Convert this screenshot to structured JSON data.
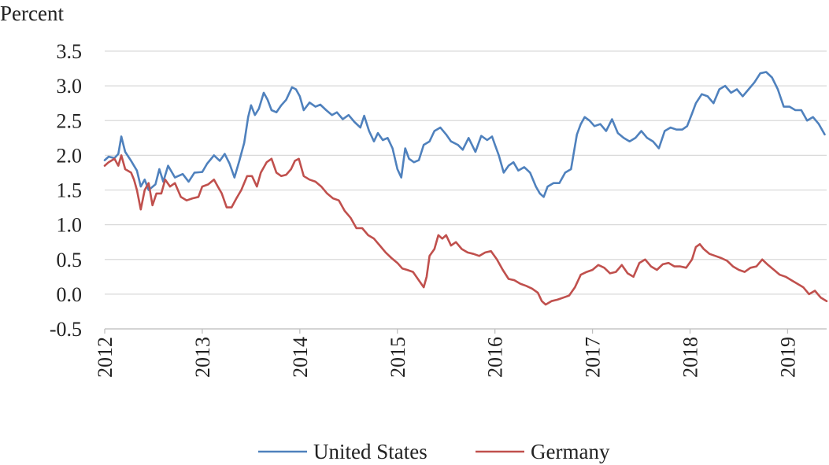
{
  "chart_data": {
    "type": "line",
    "ylabel": "Percent",
    "ylim": [
      -0.5,
      3.5
    ],
    "y_ticks": [
      "3.5",
      "3.0",
      "2.5",
      "2.0",
      "1.5",
      "1.0",
      "0.5",
      "0.0",
      "-0.5"
    ],
    "x_ticks": [
      "2012",
      "2013",
      "2014",
      "2015",
      "2016",
      "2017",
      "2018",
      "2019"
    ],
    "xlim": [
      2012.0,
      2019.4
    ],
    "grid": "horizontal",
    "legend_position": "bottom",
    "series": [
      {
        "name": "United States",
        "color": "#4f81bd",
        "points": [
          [
            2012.0,
            1.93
          ],
          [
            2012.04,
            1.98
          ],
          [
            2012.1,
            1.96
          ],
          [
            2012.14,
            2.02
          ],
          [
            2012.17,
            2.27
          ],
          [
            2012.21,
            2.05
          ],
          [
            2012.27,
            1.92
          ],
          [
            2012.33,
            1.78
          ],
          [
            2012.37,
            1.55
          ],
          [
            2012.41,
            1.65
          ],
          [
            2012.45,
            1.5
          ],
          [
            2012.52,
            1.58
          ],
          [
            2012.56,
            1.8
          ],
          [
            2012.6,
            1.62
          ],
          [
            2012.65,
            1.85
          ],
          [
            2012.72,
            1.68
          ],
          [
            2012.8,
            1.73
          ],
          [
            2012.86,
            1.62
          ],
          [
            2012.92,
            1.75
          ],
          [
            2013.0,
            1.76
          ],
          [
            2013.05,
            1.88
          ],
          [
            2013.12,
            2.0
          ],
          [
            2013.18,
            1.92
          ],
          [
            2013.23,
            2.02
          ],
          [
            2013.28,
            1.88
          ],
          [
            2013.33,
            1.68
          ],
          [
            2013.38,
            1.92
          ],
          [
            2013.43,
            2.18
          ],
          [
            2013.47,
            2.55
          ],
          [
            2013.5,
            2.72
          ],
          [
            2013.54,
            2.58
          ],
          [
            2013.58,
            2.67
          ],
          [
            2013.63,
            2.9
          ],
          [
            2013.67,
            2.8
          ],
          [
            2013.71,
            2.65
          ],
          [
            2013.76,
            2.62
          ],
          [
            2013.81,
            2.72
          ],
          [
            2013.86,
            2.8
          ],
          [
            2013.92,
            2.98
          ],
          [
            2013.96,
            2.95
          ],
          [
            2014.0,
            2.85
          ],
          [
            2014.04,
            2.65
          ],
          [
            2014.1,
            2.76
          ],
          [
            2014.16,
            2.7
          ],
          [
            2014.21,
            2.73
          ],
          [
            2014.27,
            2.65
          ],
          [
            2014.33,
            2.58
          ],
          [
            2014.38,
            2.62
          ],
          [
            2014.44,
            2.52
          ],
          [
            2014.5,
            2.58
          ],
          [
            2014.56,
            2.48
          ],
          [
            2014.62,
            2.4
          ],
          [
            2014.66,
            2.57
          ],
          [
            2014.71,
            2.35
          ],
          [
            2014.76,
            2.2
          ],
          [
            2014.8,
            2.32
          ],
          [
            2014.85,
            2.22
          ],
          [
            2014.9,
            2.25
          ],
          [
            2014.95,
            2.1
          ],
          [
            2015.0,
            1.8
          ],
          [
            2015.04,
            1.68
          ],
          [
            2015.08,
            2.1
          ],
          [
            2015.12,
            1.95
          ],
          [
            2015.17,
            1.9
          ],
          [
            2015.22,
            1.93
          ],
          [
            2015.27,
            2.15
          ],
          [
            2015.33,
            2.2
          ],
          [
            2015.38,
            2.35
          ],
          [
            2015.44,
            2.4
          ],
          [
            2015.5,
            2.3
          ],
          [
            2015.55,
            2.2
          ],
          [
            2015.62,
            2.15
          ],
          [
            2015.67,
            2.08
          ],
          [
            2015.73,
            2.25
          ],
          [
            2015.8,
            2.05
          ],
          [
            2015.86,
            2.28
          ],
          [
            2015.92,
            2.22
          ],
          [
            2015.97,
            2.27
          ],
          [
            2016.0,
            2.15
          ],
          [
            2016.04,
            2.0
          ],
          [
            2016.09,
            1.75
          ],
          [
            2016.14,
            1.85
          ],
          [
            2016.19,
            1.9
          ],
          [
            2016.24,
            1.78
          ],
          [
            2016.3,
            1.83
          ],
          [
            2016.36,
            1.75
          ],
          [
            2016.42,
            1.55
          ],
          [
            2016.46,
            1.45
          ],
          [
            2016.5,
            1.4
          ],
          [
            2016.54,
            1.55
          ],
          [
            2016.6,
            1.6
          ],
          [
            2016.66,
            1.6
          ],
          [
            2016.72,
            1.75
          ],
          [
            2016.78,
            1.8
          ],
          [
            2016.84,
            2.3
          ],
          [
            2016.88,
            2.45
          ],
          [
            2016.92,
            2.55
          ],
          [
            2016.97,
            2.5
          ],
          [
            2017.02,
            2.42
          ],
          [
            2017.08,
            2.45
          ],
          [
            2017.14,
            2.35
          ],
          [
            2017.2,
            2.52
          ],
          [
            2017.26,
            2.32
          ],
          [
            2017.32,
            2.25
          ],
          [
            2017.38,
            2.2
          ],
          [
            2017.44,
            2.25
          ],
          [
            2017.5,
            2.35
          ],
          [
            2017.56,
            2.25
          ],
          [
            2017.62,
            2.2
          ],
          [
            2017.68,
            2.1
          ],
          [
            2017.74,
            2.35
          ],
          [
            2017.8,
            2.4
          ],
          [
            2017.86,
            2.37
          ],
          [
            2017.92,
            2.37
          ],
          [
            2017.97,
            2.42
          ],
          [
            2018.02,
            2.6
          ],
          [
            2018.06,
            2.75
          ],
          [
            2018.12,
            2.88
          ],
          [
            2018.18,
            2.85
          ],
          [
            2018.24,
            2.75
          ],
          [
            2018.3,
            2.95
          ],
          [
            2018.36,
            3.0
          ],
          [
            2018.42,
            2.9
          ],
          [
            2018.48,
            2.95
          ],
          [
            2018.54,
            2.85
          ],
          [
            2018.6,
            2.95
          ],
          [
            2018.66,
            3.05
          ],
          [
            2018.72,
            3.18
          ],
          [
            2018.78,
            3.2
          ],
          [
            2018.84,
            3.12
          ],
          [
            2018.9,
            2.95
          ],
          [
            2018.96,
            2.7
          ],
          [
            2019.02,
            2.7
          ],
          [
            2019.08,
            2.65
          ],
          [
            2019.14,
            2.65
          ],
          [
            2019.2,
            2.5
          ],
          [
            2019.26,
            2.55
          ],
          [
            2019.32,
            2.45
          ],
          [
            2019.38,
            2.3
          ]
        ]
      },
      {
        "name": "Germany",
        "color": "#c0504d",
        "points": [
          [
            2012.0,
            1.85
          ],
          [
            2012.04,
            1.9
          ],
          [
            2012.1,
            1.95
          ],
          [
            2012.14,
            1.85
          ],
          [
            2012.17,
            2.0
          ],
          [
            2012.21,
            1.8
          ],
          [
            2012.27,
            1.75
          ],
          [
            2012.3,
            1.65
          ],
          [
            2012.33,
            1.5
          ],
          [
            2012.37,
            1.22
          ],
          [
            2012.41,
            1.5
          ],
          [
            2012.45,
            1.6
          ],
          [
            2012.49,
            1.28
          ],
          [
            2012.53,
            1.45
          ],
          [
            2012.58,
            1.45
          ],
          [
            2012.62,
            1.65
          ],
          [
            2012.67,
            1.55
          ],
          [
            2012.72,
            1.6
          ],
          [
            2012.78,
            1.4
          ],
          [
            2012.84,
            1.35
          ],
          [
            2012.9,
            1.38
          ],
          [
            2012.96,
            1.4
          ],
          [
            2013.0,
            1.55
          ],
          [
            2013.06,
            1.58
          ],
          [
            2013.12,
            1.65
          ],
          [
            2013.16,
            1.55
          ],
          [
            2013.2,
            1.45
          ],
          [
            2013.25,
            1.25
          ],
          [
            2013.3,
            1.25
          ],
          [
            2013.35,
            1.38
          ],
          [
            2013.4,
            1.5
          ],
          [
            2013.46,
            1.7
          ],
          [
            2013.51,
            1.7
          ],
          [
            2013.56,
            1.55
          ],
          [
            2013.6,
            1.75
          ],
          [
            2013.66,
            1.9
          ],
          [
            2013.71,
            1.95
          ],
          [
            2013.76,
            1.75
          ],
          [
            2013.81,
            1.7
          ],
          [
            2013.86,
            1.72
          ],
          [
            2013.91,
            1.8
          ],
          [
            2013.95,
            1.92
          ],
          [
            2013.99,
            1.95
          ],
          [
            2014.04,
            1.7
          ],
          [
            2014.1,
            1.65
          ],
          [
            2014.16,
            1.62
          ],
          [
            2014.22,
            1.55
          ],
          [
            2014.28,
            1.45
          ],
          [
            2014.34,
            1.38
          ],
          [
            2014.4,
            1.35
          ],
          [
            2014.46,
            1.2
          ],
          [
            2014.52,
            1.1
          ],
          [
            2014.58,
            0.95
          ],
          [
            2014.64,
            0.95
          ],
          [
            2014.7,
            0.85
          ],
          [
            2014.76,
            0.8
          ],
          [
            2014.82,
            0.7
          ],
          [
            2014.88,
            0.6
          ],
          [
            2014.94,
            0.52
          ],
          [
            2015.0,
            0.45
          ],
          [
            2015.05,
            0.37
          ],
          [
            2015.1,
            0.35
          ],
          [
            2015.16,
            0.32
          ],
          [
            2015.22,
            0.2
          ],
          [
            2015.27,
            0.1
          ],
          [
            2015.3,
            0.25
          ],
          [
            2015.33,
            0.55
          ],
          [
            2015.38,
            0.65
          ],
          [
            2015.42,
            0.85
          ],
          [
            2015.46,
            0.8
          ],
          [
            2015.5,
            0.85
          ],
          [
            2015.55,
            0.7
          ],
          [
            2015.6,
            0.75
          ],
          [
            2015.66,
            0.65
          ],
          [
            2015.72,
            0.6
          ],
          [
            2015.78,
            0.58
          ],
          [
            2015.84,
            0.55
          ],
          [
            2015.9,
            0.6
          ],
          [
            2015.96,
            0.62
          ],
          [
            2016.02,
            0.5
          ],
          [
            2016.08,
            0.35
          ],
          [
            2016.14,
            0.22
          ],
          [
            2016.2,
            0.2
          ],
          [
            2016.26,
            0.15
          ],
          [
            2016.32,
            0.12
          ],
          [
            2016.38,
            0.08
          ],
          [
            2016.44,
            0.02
          ],
          [
            2016.48,
            -0.1
          ],
          [
            2016.52,
            -0.15
          ],
          [
            2016.58,
            -0.1
          ],
          [
            2016.64,
            -0.08
          ],
          [
            2016.7,
            -0.05
          ],
          [
            2016.76,
            -0.02
          ],
          [
            2016.82,
            0.1
          ],
          [
            2016.88,
            0.28
          ],
          [
            2016.94,
            0.32
          ],
          [
            2017.0,
            0.35
          ],
          [
            2017.06,
            0.42
          ],
          [
            2017.12,
            0.38
          ],
          [
            2017.18,
            0.3
          ],
          [
            2017.24,
            0.32
          ],
          [
            2017.3,
            0.42
          ],
          [
            2017.36,
            0.3
          ],
          [
            2017.42,
            0.25
          ],
          [
            2017.48,
            0.45
          ],
          [
            2017.54,
            0.5
          ],
          [
            2017.6,
            0.4
          ],
          [
            2017.66,
            0.35
          ],
          [
            2017.72,
            0.43
          ],
          [
            2017.78,
            0.45
          ],
          [
            2017.84,
            0.4
          ],
          [
            2017.9,
            0.4
          ],
          [
            2017.96,
            0.38
          ],
          [
            2018.02,
            0.5
          ],
          [
            2018.06,
            0.68
          ],
          [
            2018.1,
            0.72
          ],
          [
            2018.14,
            0.65
          ],
          [
            2018.2,
            0.58
          ],
          [
            2018.26,
            0.55
          ],
          [
            2018.32,
            0.52
          ],
          [
            2018.38,
            0.48
          ],
          [
            2018.44,
            0.4
          ],
          [
            2018.5,
            0.35
          ],
          [
            2018.56,
            0.32
          ],
          [
            2018.62,
            0.38
          ],
          [
            2018.68,
            0.4
          ],
          [
            2018.74,
            0.5
          ],
          [
            2018.8,
            0.42
          ],
          [
            2018.86,
            0.35
          ],
          [
            2018.92,
            0.28
          ],
          [
            2018.98,
            0.25
          ],
          [
            2019.04,
            0.2
          ],
          [
            2019.1,
            0.15
          ],
          [
            2019.16,
            0.1
          ],
          [
            2019.22,
            0.0
          ],
          [
            2019.28,
            0.05
          ],
          [
            2019.34,
            -0.05
          ],
          [
            2019.4,
            -0.1
          ]
        ]
      }
    ]
  }
}
